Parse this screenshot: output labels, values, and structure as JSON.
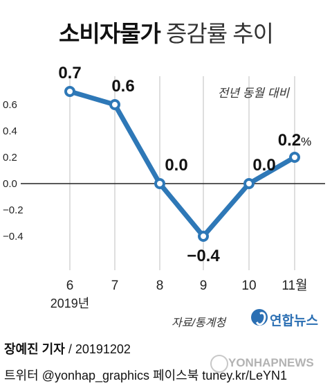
{
  "title": {
    "main": "소비자물가",
    "sub": "증감률 추이"
  },
  "chart_data": {
    "type": "line",
    "note": "전년 동월 대비",
    "categories": [
      "6",
      "7",
      "8",
      "9",
      "10",
      "11월"
    ],
    "category_sublabel": "2019년",
    "values": [
      0.7,
      0.6,
      0.0,
      -0.4,
      0.0,
      0.2
    ],
    "value_labels": [
      "0.7",
      "0.6",
      "0.0",
      "−0.4",
      "0.0",
      "0.2"
    ],
    "unit": "%",
    "yticks": [
      0.6,
      0.4,
      0.2,
      0.0,
      -0.2,
      -0.4
    ],
    "ytick_labels": [
      "0.6",
      "0.4",
      "0.2",
      "0.0",
      "−0.2",
      "−0.4"
    ],
    "ylim": [
      -0.5,
      0.75
    ],
    "grid": false,
    "colors": {
      "line": "#2e78b7",
      "marker_fill": "#ffffff",
      "zero_line": "#222222",
      "guide": "#bdbdbd"
    }
  },
  "source": "자료/통계청",
  "logo": {
    "text": "연합뉴스",
    "icon": "yonhap-logo-icon",
    "color": "#2b6fb3"
  },
  "footer": {
    "reporter": "장예진 기자",
    "date_text": " / 20191202",
    "line2": "트위터 @yonhap_graphics  페이스북 tuney.kr/LeYN1"
  },
  "watermark": {
    "text": "YONHAPNEWS",
    "icon": "yonhap-watermark-icon"
  }
}
